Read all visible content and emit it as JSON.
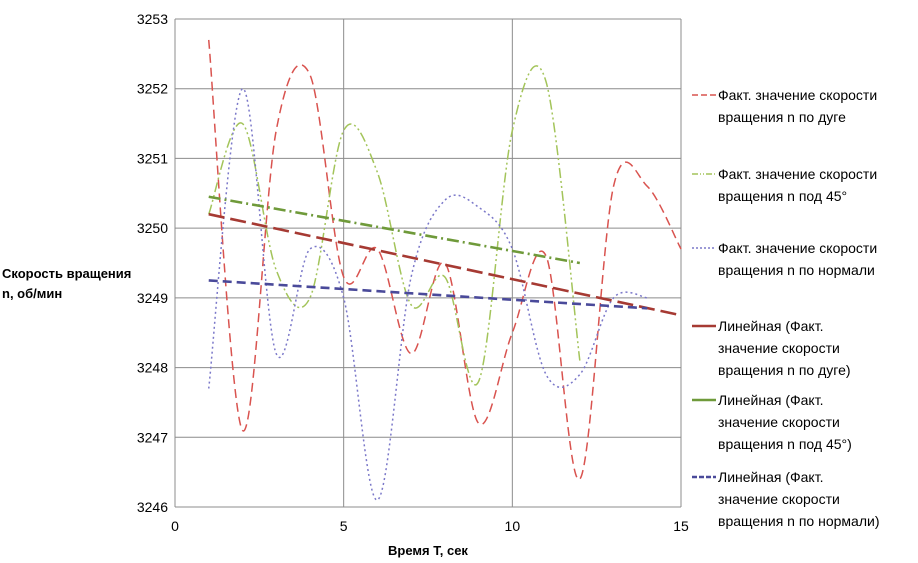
{
  "chart_data": {
    "type": "line",
    "title": "",
    "xlabel": "Время T, сек",
    "ylabel": "Скорость вращения n, об/мин",
    "xlim": [
      0,
      15
    ],
    "ylim": [
      3246,
      3253
    ],
    "x_ticks": [
      "0",
      "5",
      "10",
      "15"
    ],
    "y_ticks": [
      "3246",
      "3247",
      "3248",
      "3249",
      "3250",
      "3251",
      "3252",
      "3253"
    ],
    "grid": true,
    "legend_position": "right",
    "series": [
      {
        "name": "Факт. значение скорости вращения n  по дуге",
        "color": "#d9534f",
        "style": "dash",
        "x": [
          1,
          2,
          3,
          4,
          5,
          6,
          7,
          8,
          9,
          10,
          11,
          12,
          13,
          14,
          15
        ],
        "values": [
          3252.7,
          3247.1,
          3251.4,
          3252.2,
          3249.3,
          3249.7,
          3248.2,
          3249.5,
          3247.2,
          3248.5,
          3249.6,
          3246.4,
          3250.6,
          3250.6,
          3249.7
        ]
      },
      {
        "name": "Факт. значение скорости вращения n  под 45°",
        "color": "#a3c45a",
        "style": "dashdotdot",
        "x": [
          1,
          2,
          3,
          4,
          5,
          6,
          7,
          8,
          9,
          10,
          11,
          12
        ],
        "values": [
          3250.2,
          3251.5,
          3249.4,
          3249.0,
          3251.4,
          3250.8,
          3248.9,
          3249.3,
          3247.8,
          3251.4,
          3252.1,
          3248.1
        ]
      },
      {
        "name": "Факт. значение скорости вращения n по нормали",
        "color": "#7b78c9",
        "style": "dot",
        "x": [
          1,
          2,
          3,
          4,
          5,
          6,
          7,
          8,
          9,
          10,
          11,
          12,
          13,
          14
        ],
        "values": [
          3247.7,
          3252.0,
          3248.2,
          3249.7,
          3249.0,
          3246.1,
          3249.3,
          3250.4,
          3250.3,
          3249.7,
          3247.9,
          3247.9,
          3249.0,
          3249.0
        ]
      },
      {
        "name": "Линейная (Факт. значение скорости вращения n  по дуге)",
        "color": "#a63a33",
        "style": "longdash",
        "x": [
          1,
          15
        ],
        "values": [
          3250.2,
          3248.75
        ]
      },
      {
        "name": "Линейная (Факт. значение скорости вращения n  под 45°)",
        "color": "#6f9a3a",
        "style": "dashdot",
        "x": [
          1,
          12
        ],
        "values": [
          3250.45,
          3249.5
        ]
      },
      {
        "name": "Линейная (Факт. значение скорости вращения n по нормали)",
        "color": "#4a4a9a",
        "style": "dash",
        "x": [
          1,
          14
        ],
        "values": [
          3249.25,
          3248.85
        ]
      }
    ]
  }
}
